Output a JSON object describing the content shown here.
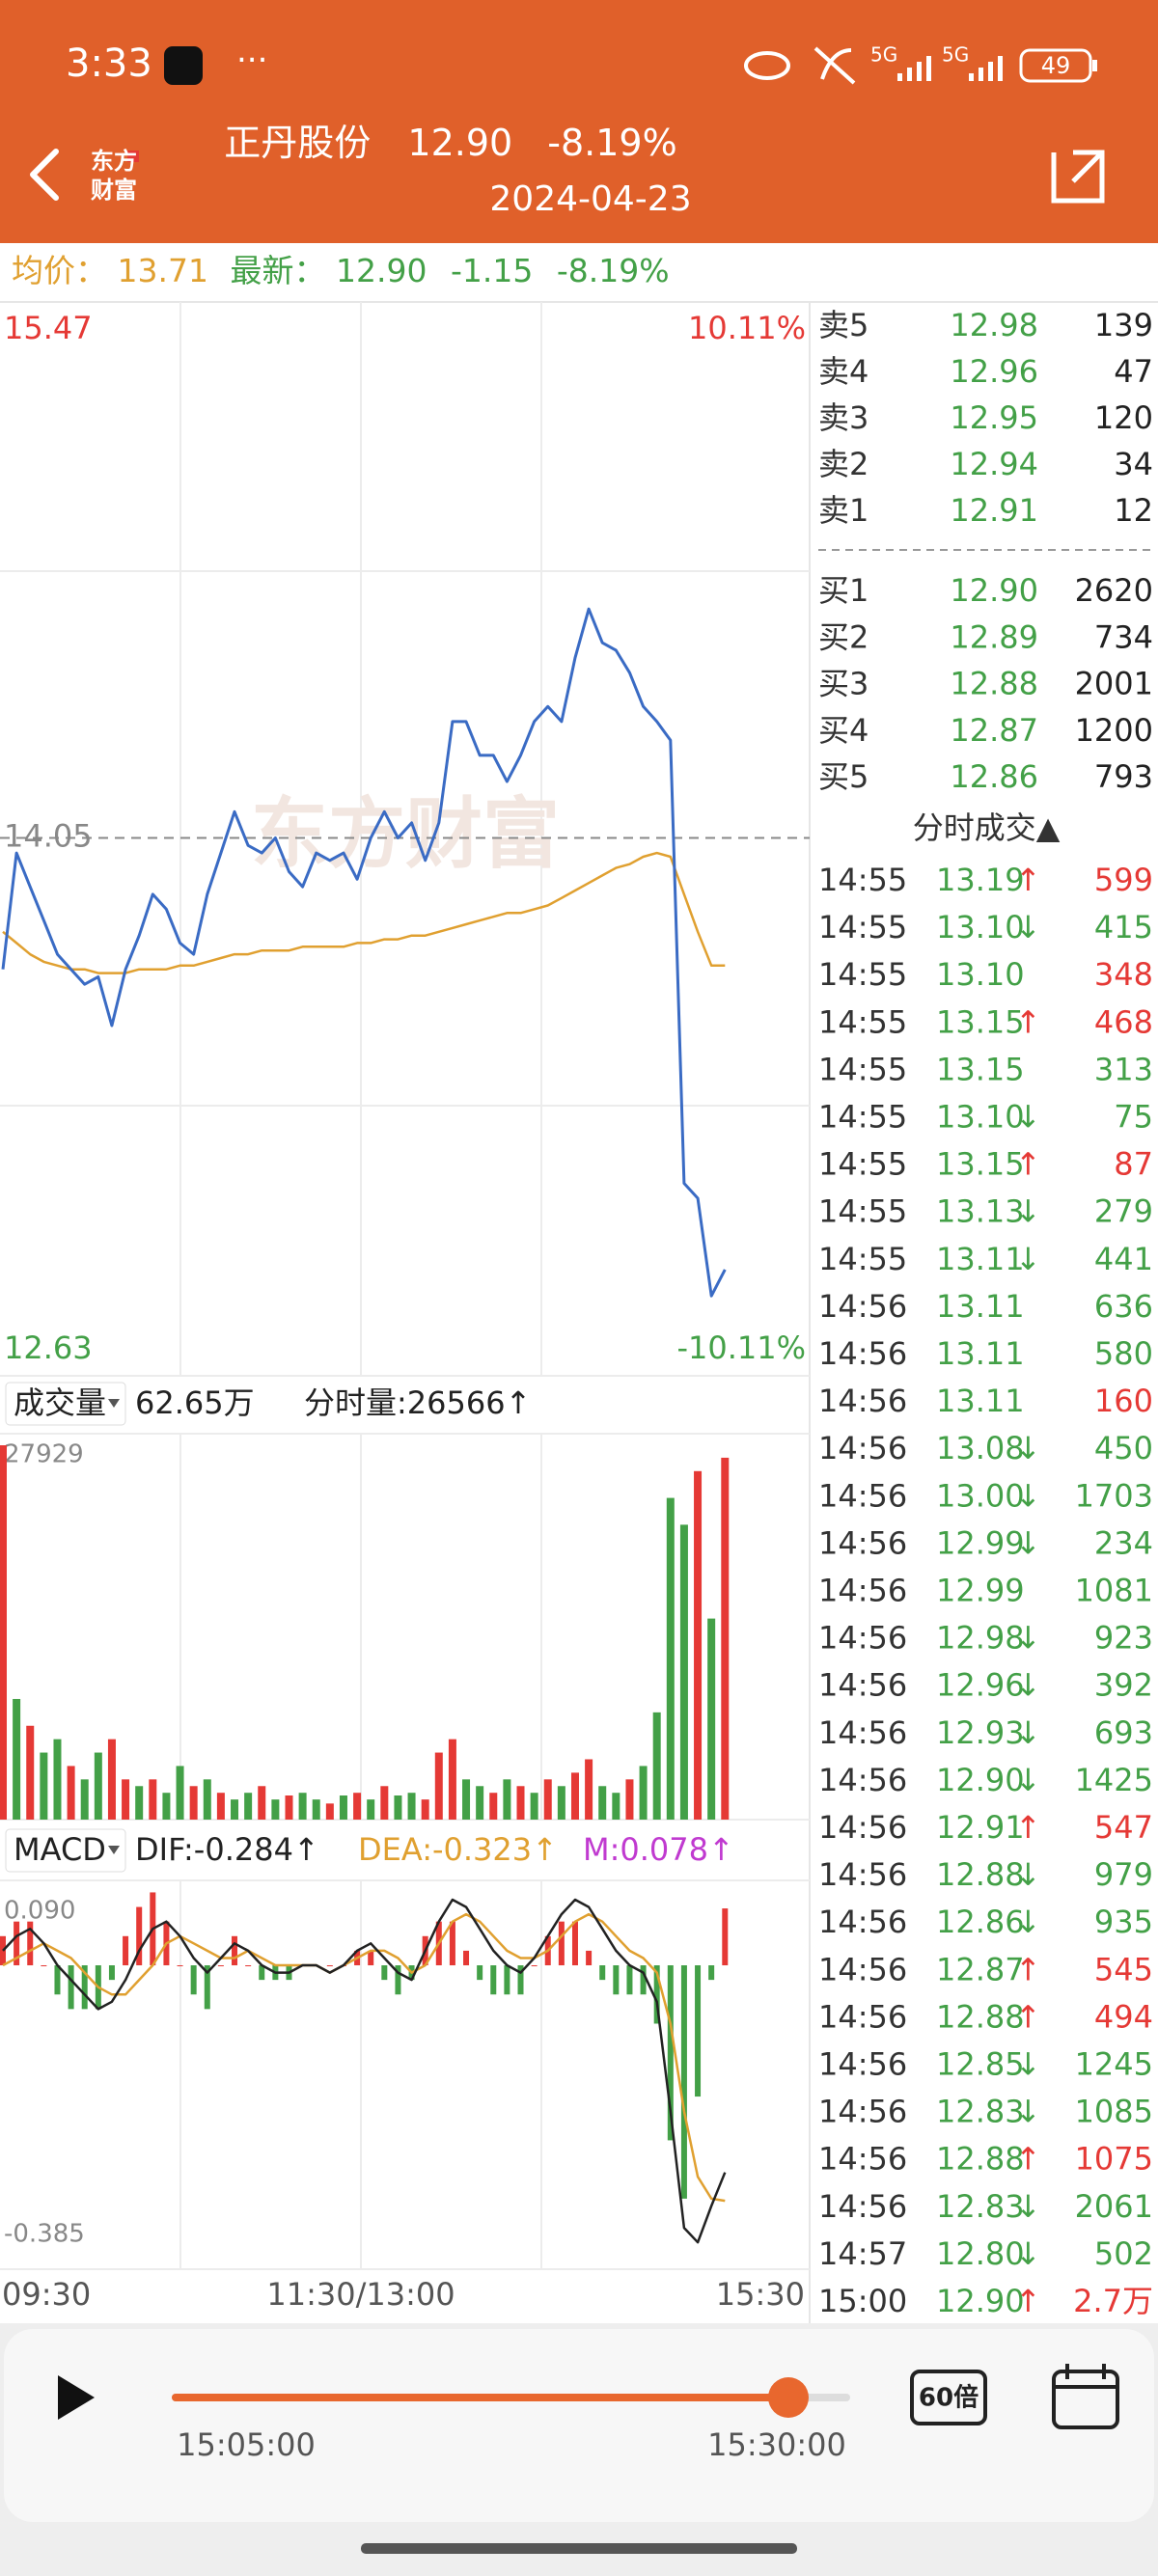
{
  "status_bar": {
    "time": "3:33",
    "network": [
      "5G",
      "5G"
    ],
    "battery": "49"
  },
  "header": {
    "logo": [
      "东方",
      "财富"
    ],
    "name": "正丹股份",
    "price": "12.90",
    "change_pct": "-8.19%",
    "date": "2024-04-23"
  },
  "info": {
    "avg_label": "均价：",
    "avg": "13.71",
    "last_label": "最新：",
    "last": "12.90",
    "change": "-1.15",
    "change_pct": "-8.19%"
  },
  "price_chart": {
    "type": "line",
    "ylim": [
      12.63,
      15.47
    ],
    "yticks": [
      12.63,
      14.05,
      15.47
    ],
    "pct_labels": [
      "-10.11%",
      "10.11%"
    ],
    "watermark": "东方财富",
    "price_color": "#3a6bc4",
    "avg_color": "#e0a030",
    "price": [
      13.7,
      14.01,
      13.92,
      13.83,
      13.74,
      13.7,
      13.66,
      13.68,
      13.55,
      13.7,
      13.79,
      13.9,
      13.86,
      13.77,
      13.74,
      13.9,
      14.01,
      14.12,
      14.03,
      14.01,
      14.05,
      13.96,
      13.92,
      14.01,
      13.99,
      14.01,
      13.94,
      14.05,
      14.12,
      14.05,
      14.09,
      13.99,
      14.09,
      14.36,
      14.36,
      14.27,
      14.27,
      14.2,
      14.27,
      14.36,
      14.4,
      14.36,
      14.53,
      14.66,
      14.57,
      14.55,
      14.49,
      14.4,
      14.36,
      14.31,
      13.13,
      13.09,
      12.83,
      12.9,
      null,
      null,
      null,
      null,
      null,
      null
    ],
    "avg": [
      13.8,
      13.77,
      13.74,
      13.72,
      13.71,
      13.7,
      13.7,
      13.69,
      13.69,
      13.69,
      13.7,
      13.7,
      13.7,
      13.71,
      13.71,
      13.72,
      13.73,
      13.74,
      13.74,
      13.75,
      13.75,
      13.75,
      13.76,
      13.76,
      13.76,
      13.76,
      13.77,
      13.77,
      13.78,
      13.78,
      13.79,
      13.79,
      13.8,
      13.81,
      13.82,
      13.83,
      13.84,
      13.85,
      13.85,
      13.86,
      13.87,
      13.89,
      13.91,
      13.93,
      13.95,
      13.97,
      13.98,
      14.0,
      14.01,
      14.0,
      13.9,
      13.8,
      13.71,
      13.71,
      null,
      null,
      null,
      null,
      null,
      null
    ]
  },
  "volume_chart": {
    "type": "bar",
    "label": "成交量",
    "total": "62.65万",
    "minute_volume": "分时量:26566↑",
    "ylim": [
      0,
      27929
    ],
    "yticks": [
      27929
    ],
    "values": [
      27929,
      9000,
      7000,
      5000,
      6000,
      4000,
      3000,
      5000,
      6000,
      3000,
      2500,
      3000,
      2000,
      4000,
      2500,
      3000,
      2000,
      1500,
      2000,
      2500,
      1500,
      1800,
      2000,
      1500,
      1200,
      1800,
      2000,
      1500,
      2500,
      1800,
      2000,
      1500,
      5000,
      6000,
      3000,
      2500,
      2000,
      3000,
      2500,
      2000,
      3000,
      2500,
      3500,
      4500,
      2500,
      2000,
      3000,
      4000,
      8000,
      24000,
      22000,
      26000,
      15000,
      27000,
      null,
      null,
      null,
      null,
      null,
      null
    ],
    "colors": [
      "#e53935",
      "#43a047",
      "#e53935",
      "#43a047",
      "#43a047",
      "#e53935",
      "#43a047",
      "#43a047",
      "#e53935",
      "#e53935",
      "#43a047",
      "#e53935",
      "#43a047",
      "#43a047",
      "#e53935",
      "#43a047",
      "#e53935",
      "#43a047",
      "#43a047",
      "#e53935",
      "#43a047",
      "#e53935",
      "#43a047",
      "#43a047",
      "#e53935",
      "#43a047",
      "#e53935",
      "#43a047",
      "#e53935",
      "#43a047",
      "#43a047",
      "#e53935",
      "#e53935",
      "#e53935",
      "#43a047",
      "#43a047",
      "#e53935",
      "#43a047",
      "#e53935",
      "#43a047",
      "#e53935",
      "#43a047",
      "#e53935",
      "#e53935",
      "#43a047",
      "#43a047",
      "#e53935",
      "#43a047",
      "#43a047",
      "#43a047",
      "#43a047",
      "#e53935",
      "#43a047",
      "#e53935",
      null,
      null,
      null,
      null,
      null,
      null
    ]
  },
  "macd_chart": {
    "type": "macd",
    "label": "MACD",
    "dif_label": "DIF:-0.284↑",
    "dea_label": "DEA:-0.323↑",
    "m_label": "M:0.078↑",
    "ylim": [
      -0.385,
      0.09
    ],
    "yticks": [
      -0.385,
      {
        "value": 0.09,
        "label": "0.090"
      }
    ],
    "dif_color": "#222222",
    "dea_color": "#e0a030",
    "up_color": "#e53935",
    "down_color": "#43a047",
    "dif": [
      0.02,
      0.04,
      0.05,
      0.03,
      0.0,
      -0.02,
      -0.04,
      -0.06,
      -0.05,
      -0.02,
      0.02,
      0.05,
      0.06,
      0.04,
      0.01,
      -0.01,
      0.01,
      0.03,
      0.02,
      0.0,
      -0.01,
      -0.01,
      0.0,
      0.0,
      -0.01,
      0.0,
      0.02,
      0.03,
      0.01,
      -0.01,
      -0.02,
      0.02,
      0.06,
      0.09,
      0.08,
      0.05,
      0.02,
      0.0,
      -0.01,
      0.01,
      0.04,
      0.07,
      0.09,
      0.08,
      0.05,
      0.02,
      0.0,
      -0.01,
      -0.05,
      -0.2,
      -0.36,
      -0.38,
      -0.33,
      -0.284,
      null,
      null,
      null,
      null,
      null,
      null
    ],
    "dea": [
      0.0,
      0.01,
      0.02,
      0.03,
      0.02,
      0.01,
      -0.01,
      -0.03,
      -0.04,
      -0.04,
      -0.02,
      0.0,
      0.03,
      0.04,
      0.03,
      0.02,
      0.01,
      0.01,
      0.02,
      0.01,
      0.0,
      0.0,
      0.0,
      0.0,
      -0.01,
      0.0,
      0.01,
      0.02,
      0.02,
      0.01,
      -0.01,
      0.0,
      0.03,
      0.06,
      0.07,
      0.06,
      0.04,
      0.02,
      0.01,
      0.01,
      0.02,
      0.04,
      0.06,
      0.07,
      0.06,
      0.04,
      0.02,
      0.01,
      -0.01,
      -0.08,
      -0.2,
      -0.29,
      -0.32,
      -0.323,
      null,
      null,
      null,
      null,
      null,
      null
    ],
    "m": [
      0.04,
      0.06,
      0.06,
      0,
      -0.04,
      -0.06,
      -0.06,
      -0.06,
      -0.02,
      0.04,
      0.08,
      0.1,
      0.06,
      0,
      -0.04,
      -0.06,
      0,
      0.04,
      0,
      -0.02,
      -0.02,
      -0.02,
      0,
      0,
      0,
      0,
      0.02,
      0.02,
      -0.02,
      -0.04,
      -0.02,
      0.04,
      0.06,
      0.06,
      0.02,
      -0.02,
      -0.04,
      -0.04,
      -0.04,
      0,
      0.04,
      0.06,
      0.06,
      0.02,
      -0.02,
      -0.04,
      -0.04,
      -0.04,
      -0.08,
      -0.24,
      -0.32,
      -0.18,
      -0.02,
      0.078,
      null,
      null,
      null,
      null,
      null,
      null
    ]
  },
  "x_labels": [
    "09:30",
    "11:30/13:00",
    "15:30"
  ],
  "order_book": {
    "asks": [
      {
        "label": "卖5",
        "price": "12.98",
        "volume": 139
      },
      {
        "label": "卖4",
        "price": "12.96",
        "volume": 47
      },
      {
        "label": "卖3",
        "price": "12.95",
        "volume": 120
      },
      {
        "label": "卖2",
        "price": "12.94",
        "volume": 34
      },
      {
        "label": "卖1",
        "price": "12.91",
        "volume": 12
      }
    ],
    "bids": [
      {
        "label": "买1",
        "price": "12.90",
        "volume": 2620
      },
      {
        "label": "买2",
        "price": "12.89",
        "volume": 734
      },
      {
        "label": "买3",
        "price": "12.88",
        "volume": 2001
      },
      {
        "label": "买4",
        "price": "12.87",
        "volume": 1200
      },
      {
        "label": "买5",
        "price": "12.86",
        "volume": 793
      }
    ]
  },
  "trades": {
    "title": "分时成交▲",
    "rows": [
      {
        "time": "14:55",
        "price": "13.19",
        "arrow": "↑",
        "volume": 599,
        "color": "#e53935"
      },
      {
        "time": "14:55",
        "price": "13.10",
        "arrow": "↓",
        "volume": 415,
        "color": "#43a047"
      },
      {
        "time": "14:55",
        "price": "13.10",
        "volume": 348,
        "color": "#e53935"
      },
      {
        "time": "14:55",
        "price": "13.15",
        "arrow": "↑",
        "volume": 468,
        "color": "#e53935"
      },
      {
        "time": "14:55",
        "price": "13.15",
        "volume": 313,
        "color": "#43a047"
      },
      {
        "time": "14:55",
        "price": "13.10",
        "arrow": "↓",
        "volume": 75,
        "color": "#43a047"
      },
      {
        "time": "14:55",
        "price": "13.15",
        "arrow": "↑",
        "volume": 87,
        "color": "#e53935"
      },
      {
        "time": "14:55",
        "price": "13.13",
        "arrow": "↓",
        "volume": 279,
        "color": "#43a047"
      },
      {
        "time": "14:55",
        "price": "13.11",
        "arrow": "↓",
        "volume": 441,
        "color": "#43a047"
      },
      {
        "time": "14:56",
        "price": "13.11",
        "volume": 636,
        "color": "#43a047"
      },
      {
        "time": "14:56",
        "price": "13.11",
        "volume": 580,
        "color": "#43a047"
      },
      {
        "time": "14:56",
        "price": "13.11",
        "volume": 160,
        "color": "#e53935"
      },
      {
        "time": "14:56",
        "price": "13.08",
        "arrow": "↓",
        "volume": 450,
        "color": "#43a047"
      },
      {
        "time": "14:56",
        "price": "13.00",
        "arrow": "↓",
        "volume": 1703,
        "color": "#43a047"
      },
      {
        "time": "14:56",
        "price": "12.99",
        "arrow": "↓",
        "volume": 234,
        "color": "#43a047"
      },
      {
        "time": "14:56",
        "price": "12.99",
        "volume": 1081,
        "color": "#43a047"
      },
      {
        "time": "14:56",
        "price": "12.98",
        "arrow": "↓",
        "volume": 923,
        "color": "#43a047"
      },
      {
        "time": "14:56",
        "price": "12.96",
        "arrow": "↓",
        "volume": 392,
        "color": "#43a047"
      },
      {
        "time": "14:56",
        "price": "12.93",
        "arrow": "↓",
        "volume": 693,
        "color": "#43a047"
      },
      {
        "time": "14:56",
        "price": "12.90",
        "arrow": "↓",
        "volume": 1425,
        "color": "#43a047"
      },
      {
        "time": "14:56",
        "price": "12.91",
        "arrow": "↑",
        "volume": 547,
        "color": "#e53935"
      },
      {
        "time": "14:56",
        "price": "12.88",
        "arrow": "↓",
        "volume": 979,
        "color": "#43a047"
      },
      {
        "time": "14:56",
        "price": "12.86",
        "arrow": "↓",
        "volume": 935,
        "color": "#43a047"
      },
      {
        "time": "14:56",
        "price": "12.87",
        "arrow": "↑",
        "volume": 545,
        "color": "#e53935"
      },
      {
        "time": "14:56",
        "price": "12.88",
        "arrow": "↑",
        "volume": 494,
        "color": "#e53935"
      },
      {
        "time": "14:56",
        "price": "12.85",
        "arrow": "↓",
        "volume": 1245,
        "color": "#43a047"
      },
      {
        "time": "14:56",
        "price": "12.83",
        "arrow": "↓",
        "volume": 1085,
        "color": "#43a047"
      },
      {
        "time": "14:56",
        "price": "12.88",
        "arrow": "↑",
        "volume": 1075,
        "color": "#e53935"
      },
      {
        "time": "14:56",
        "price": "12.83",
        "arrow": "↓",
        "volume": 2061,
        "color": "#43a047"
      },
      {
        "time": "14:57",
        "price": "12.80",
        "arrow": "↓",
        "volume": 502,
        "color": "#43a047"
      },
      {
        "time": "15:00",
        "price": "12.90",
        "arrow": "↑",
        "volume": "2.7万",
        "color": "#e53935"
      }
    ]
  },
  "player": {
    "start": "15:05:00",
    "end": "15:30:00",
    "speed": "60倍"
  }
}
